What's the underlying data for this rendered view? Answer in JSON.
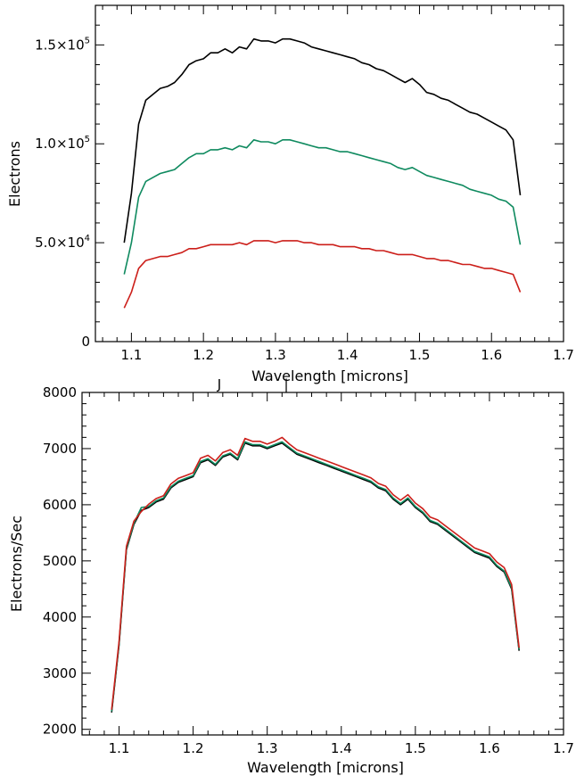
{
  "chart_data": [
    {
      "type": "line",
      "title": "",
      "xlabel": "Wavelength [microns]",
      "ylabel": "Electrons",
      "xlim": [
        1.05,
        1.7
      ],
      "ylim": [
        0,
        170000
      ],
      "x_ticks": [
        1.1,
        1.2,
        1.3,
        1.4,
        1.5,
        1.6,
        1.7
      ],
      "x_tick_labels": [
        "1.1",
        "1.2",
        "1.3",
        "1.4",
        "1.5",
        "1.6",
        "1.7"
      ],
      "y_ticks": [
        0,
        50000,
        100000,
        150000
      ],
      "y_tick_labels": [
        {
          "mantissa": "0",
          "exp": ""
        },
        {
          "mantissa": "5.0×10",
          "exp": "4"
        },
        {
          "mantissa": "1.0×10",
          "exp": "5"
        },
        {
          "mantissa": "1.5×10",
          "exp": "5"
        }
      ],
      "top_annotations": [
        "J",
        "|"
      ],
      "x": [
        1.09,
        1.1,
        1.11,
        1.12,
        1.13,
        1.14,
        1.15,
        1.16,
        1.17,
        1.18,
        1.19,
        1.2,
        1.21,
        1.22,
        1.23,
        1.24,
        1.25,
        1.26,
        1.27,
        1.28,
        1.29,
        1.3,
        1.31,
        1.32,
        1.33,
        1.34,
        1.35,
        1.36,
        1.37,
        1.38,
        1.39,
        1.4,
        1.41,
        1.42,
        1.43,
        1.44,
        1.45,
        1.46,
        1.47,
        1.48,
        1.49,
        1.5,
        1.51,
        1.52,
        1.53,
        1.54,
        1.55,
        1.56,
        1.57,
        1.58,
        1.59,
        1.6,
        1.61,
        1.62,
        1.63,
        1.64
      ],
      "series": [
        {
          "color": "#000000",
          "values": [
            50000,
            75000,
            110000,
            122000,
            125000,
            128000,
            129000,
            131000,
            135000,
            140000,
            142000,
            143000,
            146000,
            146000,
            148000,
            146000,
            149000,
            148000,
            153000,
            152000,
            152000,
            151000,
            153000,
            153000,
            152000,
            151000,
            149000,
            148000,
            147000,
            146000,
            145000,
            144000,
            143000,
            141000,
            140000,
            138000,
            137000,
            135000,
            133000,
            131000,
            133000,
            130000,
            126000,
            125000,
            123000,
            122000,
            120000,
            118000,
            116000,
            115000,
            113000,
            111000,
            109000,
            107000,
            102000,
            74000
          ]
        },
        {
          "color": "#0f8a5f",
          "values": [
            34000,
            50000,
            73000,
            81000,
            83000,
            85000,
            86000,
            87000,
            90000,
            93000,
            95000,
            95000,
            97000,
            97000,
            98000,
            97000,
            99000,
            98000,
            102000,
            101000,
            101000,
            100000,
            102000,
            102000,
            101000,
            100000,
            99000,
            98000,
            98000,
            97000,
            96000,
            96000,
            95000,
            94000,
            93000,
            92000,
            91000,
            90000,
            88000,
            87000,
            88000,
            86000,
            84000,
            83000,
            82000,
            81000,
            80000,
            79000,
            77000,
            76000,
            75000,
            74000,
            72000,
            71000,
            68000,
            49000
          ]
        },
        {
          "color": "#cc1f1a",
          "values": [
            17000,
            25000,
            37000,
            41000,
            42000,
            43000,
            43000,
            44000,
            45000,
            47000,
            47000,
            48000,
            49000,
            49000,
            49000,
            49000,
            50000,
            49000,
            51000,
            51000,
            51000,
            50000,
            51000,
            51000,
            51000,
            50000,
            50000,
            49000,
            49000,
            49000,
            48000,
            48000,
            48000,
            47000,
            47000,
            46000,
            46000,
            45000,
            44000,
            44000,
            44000,
            43000,
            42000,
            42000,
            41000,
            41000,
            40000,
            39000,
            39000,
            38000,
            37000,
            37000,
            36000,
            35000,
            34000,
            25000
          ]
        }
      ]
    },
    {
      "type": "line",
      "title": "",
      "xlabel": "Wavelength [microns]",
      "ylabel": "Electrons/Sec",
      "xlim": [
        1.05,
        1.7
      ],
      "ylim": [
        1900,
        8000
      ],
      "x_ticks": [
        1.1,
        1.2,
        1.3,
        1.4,
        1.5,
        1.6,
        1.7
      ],
      "x_tick_labels": [
        "1.1",
        "1.2",
        "1.3",
        "1.4",
        "1.5",
        "1.6",
        "1.7"
      ],
      "y_ticks": [
        2000,
        3000,
        4000,
        5000,
        6000,
        7000,
        8000
      ],
      "y_tick_labels": [
        "2000",
        "3000",
        "4000",
        "5000",
        "6000",
        "7000",
        "8000"
      ],
      "x": [
        1.09,
        1.1,
        1.11,
        1.12,
        1.13,
        1.14,
        1.15,
        1.16,
        1.17,
        1.18,
        1.19,
        1.2,
        1.21,
        1.22,
        1.23,
        1.24,
        1.25,
        1.26,
        1.27,
        1.28,
        1.29,
        1.3,
        1.31,
        1.32,
        1.33,
        1.34,
        1.35,
        1.36,
        1.37,
        1.38,
        1.39,
        1.4,
        1.41,
        1.42,
        1.43,
        1.44,
        1.45,
        1.46,
        1.47,
        1.48,
        1.49,
        1.5,
        1.51,
        1.52,
        1.53,
        1.54,
        1.55,
        1.56,
        1.57,
        1.58,
        1.59,
        1.6,
        1.61,
        1.62,
        1.63,
        1.64
      ],
      "series": [
        {
          "color": "#000000",
          "values": [
            2300,
            3500,
            5200,
            5650,
            5900,
            5950,
            6050,
            6100,
            6300,
            6400,
            6450,
            6500,
            6750,
            6800,
            6700,
            6850,
            6900,
            6800,
            7100,
            7050,
            7050,
            7000,
            7050,
            7100,
            7000,
            6900,
            6850,
            6800,
            6750,
            6700,
            6650,
            6600,
            6550,
            6500,
            6450,
            6400,
            6300,
            6250,
            6100,
            6000,
            6100,
            5950,
            5850,
            5700,
            5650,
            5550,
            5450,
            5350,
            5250,
            5150,
            5100,
            5050,
            4900,
            4800,
            4500,
            3400
          ]
        },
        {
          "color": "#0f8a5f",
          "values": [
            2320,
            3520,
            5220,
            5670,
            5950,
            5970,
            6070,
            6120,
            6320,
            6420,
            6470,
            6520,
            6770,
            6820,
            6720,
            6870,
            6920,
            6820,
            7120,
            7070,
            7070,
            7020,
            7070,
            7120,
            7020,
            6920,
            6870,
            6820,
            6770,
            6720,
            6670,
            6620,
            6570,
            6520,
            6470,
            6420,
            6320,
            6270,
            6120,
            6020,
            6120,
            5970,
            5870,
            5720,
            5670,
            5570,
            5470,
            5370,
            5270,
            5170,
            5120,
            5070,
            4920,
            4820,
            4520,
            3420
          ]
        },
        {
          "color": "#cc1f1a",
          "values": [
            2350,
            3560,
            5260,
            5710,
            5880,
            6010,
            6110,
            6160,
            6370,
            6470,
            6520,
            6570,
            6830,
            6880,
            6780,
            6930,
            6980,
            6880,
            7180,
            7130,
            7130,
            7080,
            7130,
            7200,
            7080,
            6980,
            6930,
            6880,
            6830,
            6780,
            6730,
            6680,
            6630,
            6580,
            6530,
            6480,
            6380,
            6330,
            6180,
            6080,
            6180,
            6030,
            5930,
            5780,
            5730,
            5630,
            5530,
            5430,
            5330,
            5230,
            5180,
            5130,
            4980,
            4880,
            4580,
            3450
          ]
        }
      ]
    }
  ]
}
